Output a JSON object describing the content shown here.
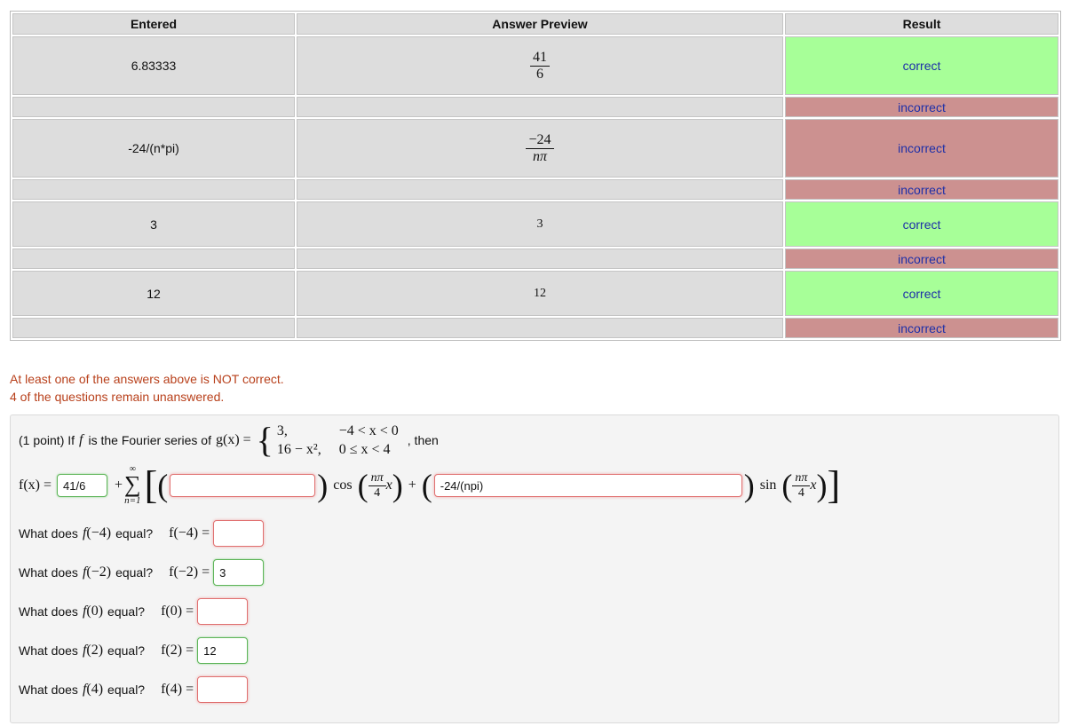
{
  "results_table": {
    "headers": {
      "entered": "Entered",
      "preview": "Answer Preview",
      "result": "Result"
    },
    "rows": [
      {
        "entered": "6.83333",
        "preview_num": "41",
        "preview_den": "6",
        "result": "correct"
      },
      {
        "entered": "",
        "preview_num": "",
        "preview_den": "",
        "result": "incorrect"
      },
      {
        "entered": "-24/(n*pi)",
        "preview_num": "−24",
        "preview_den": "nπ",
        "result": "incorrect"
      },
      {
        "entered": "",
        "preview_num": "",
        "preview_den": "",
        "result": "incorrect"
      },
      {
        "entered": "3",
        "preview": "3",
        "result": "correct"
      },
      {
        "entered": "",
        "preview": "",
        "result": "incorrect"
      },
      {
        "entered": "12",
        "preview": "12",
        "result": "correct"
      },
      {
        "entered": "",
        "preview": "",
        "result": "incorrect"
      }
    ]
  },
  "messages": {
    "not_correct": "At least one of the answers above is NOT correct.",
    "unanswered": "4 of the questions remain unanswered."
  },
  "problem": {
    "intro": "(1 point) If",
    "f": "f",
    "is_the": "is the Fourier series of",
    "g_of_x": "g(x) =",
    "piece1_val": "3,",
    "piece1_cond": "−4 < x < 0",
    "piece2_val": "16 − x²,",
    "piece2_cond": "0 ≤ x < 4",
    "then": ", then",
    "fx_eq": "f(x) =",
    "a0_value": "41/6",
    "plus": "+",
    "sum_top": "∞",
    "sum_sym": "∑",
    "sum_bottom": "n=1",
    "an_value": "",
    "cos": "cos",
    "npi": "nπ",
    "four": "4",
    "x": "x",
    "bn_value": "-24/(npi)",
    "sin": "sin",
    "questions": [
      {
        "label": "What does",
        "f": "f",
        "arg": "(−4)",
        "equal": "equal?",
        "expr": "f(−4) =",
        "value": "",
        "status": "bad"
      },
      {
        "label": "What does",
        "f": "f",
        "arg": "(−2)",
        "equal": "equal?",
        "expr": "f(−2) =",
        "value": "3",
        "status": "good"
      },
      {
        "label": "What does",
        "f": "f",
        "arg": "(0)",
        "equal": "equal?",
        "expr": "f(0) =",
        "value": "",
        "status": "bad"
      },
      {
        "label": "What does",
        "f": "f",
        "arg": "(2)",
        "equal": "equal?",
        "expr": "f(2) =",
        "value": "12",
        "status": "good"
      },
      {
        "label": "What does",
        "f": "f",
        "arg": "(4)",
        "equal": "equal?",
        "expr": "f(4) =",
        "value": "",
        "status": "bad"
      }
    ]
  },
  "colors": {
    "correct": "#a7ff98",
    "incorrect": "#cc9190",
    "message": "#b8401b",
    "result_text": "#1d2fa8"
  }
}
